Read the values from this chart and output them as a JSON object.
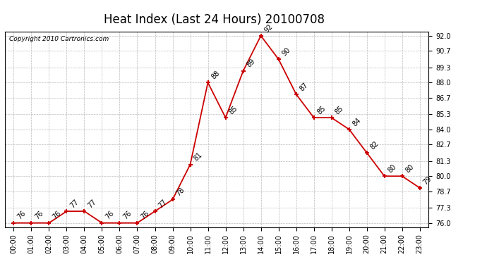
{
  "title": "Heat Index (Last 24 Hours) 20100708",
  "copyright": "Copyright 2010 Cartronics.com",
  "x_labels": [
    "00:00",
    "01:00",
    "02:00",
    "03:00",
    "04:00",
    "05:00",
    "06:00",
    "07:00",
    "08:00",
    "09:00",
    "10:00",
    "11:00",
    "12:00",
    "13:00",
    "14:00",
    "15:00",
    "16:00",
    "17:00",
    "18:00",
    "19:00",
    "20:00",
    "21:00",
    "22:00",
    "23:00"
  ],
  "y_values": [
    76,
    76,
    76,
    77,
    77,
    76,
    76,
    76,
    77,
    78,
    81,
    88,
    85,
    89,
    92,
    90,
    87,
    85,
    85,
    84,
    82,
    80,
    80,
    79
  ],
  "y_labels": [
    "76.0",
    "77.3",
    "78.7",
    "80.0",
    "81.3",
    "82.7",
    "84.0",
    "85.3",
    "86.7",
    "88.0",
    "89.3",
    "90.7",
    "92.0"
  ],
  "y_tick_vals": [
    76.0,
    77.3,
    78.7,
    80.0,
    81.3,
    82.7,
    84.0,
    85.3,
    86.7,
    88.0,
    89.3,
    90.7,
    92.0
  ],
  "ylim": [
    75.65,
    92.35
  ],
  "xlim": [
    -0.5,
    23.5
  ],
  "line_color": "#cc0000",
  "marker_color": "#cc0000",
  "bg_color": "#ffffff",
  "grid_color": "#bbbbbb",
  "title_fontsize": 12,
  "tick_fontsize": 7,
  "annot_fontsize": 7,
  "copyright_fontsize": 6.5
}
